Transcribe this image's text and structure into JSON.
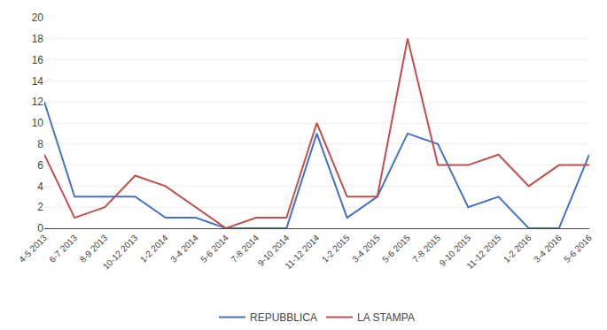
{
  "chart_data": {
    "type": "line",
    "categories": [
      "4-5 2013",
      "6-7 2013",
      "8-9 2013",
      "10-12 2013",
      "1-2 2014",
      "3-4 2014",
      "5-6 2014",
      "7-8 2014",
      "9-10 2014",
      "11-12 2014",
      "1-2 2015",
      "3-4 2015",
      "5-6 2015",
      "7-8 2015",
      "9-10 2015",
      "11-12 2015",
      "1-2 2016",
      "3-4 2016",
      "5-6 2016"
    ],
    "series": [
      {
        "name": "REPUBBLICA",
        "color": "#4472c4",
        "values": [
          12,
          3,
          3,
          3,
          1,
          1,
          0,
          0,
          0,
          9,
          1,
          3,
          9,
          8,
          2,
          3,
          0,
          0,
          7
        ]
      },
      {
        "name": "LA STAMPA",
        "color": "#c0504d",
        "values": [
          7,
          1,
          2,
          5,
          4,
          2,
          0,
          1,
          1,
          10,
          3,
          3,
          18,
          6,
          6,
          7,
          4,
          6,
          6
        ]
      }
    ],
    "ylim": [
      0,
      20
    ],
    "yticks": [
      0,
      2,
      4,
      6,
      8,
      10,
      12,
      14,
      16,
      18,
      20
    ],
    "grid": true,
    "legend": "bottom"
  }
}
